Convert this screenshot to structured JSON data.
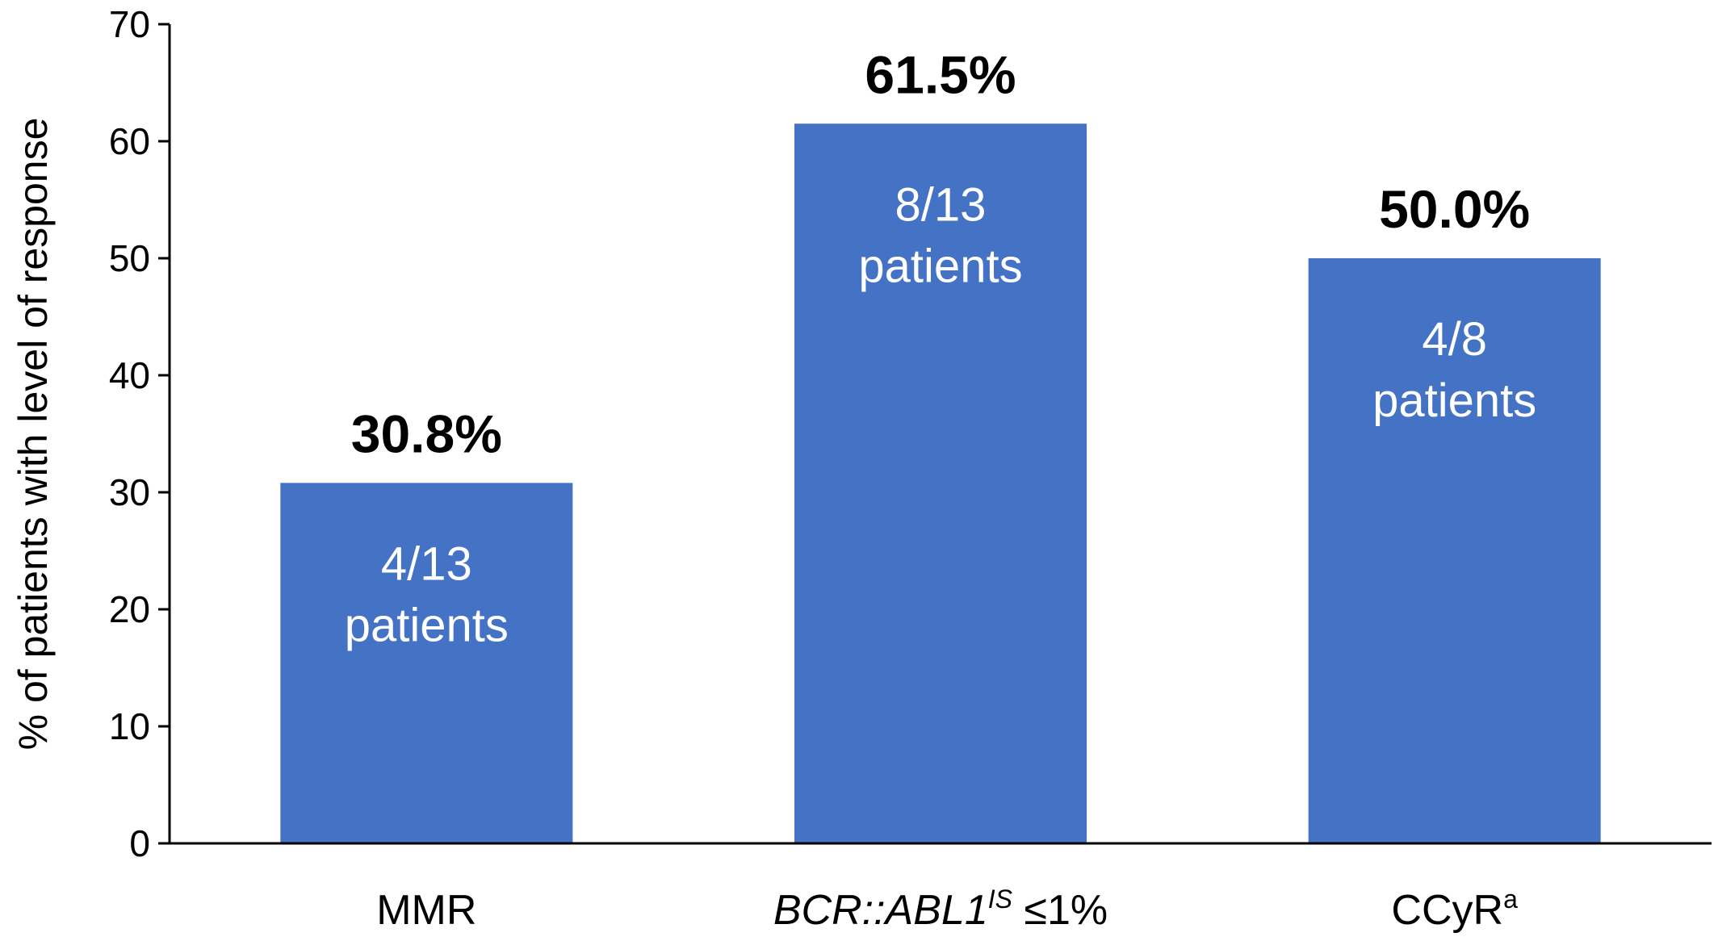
{
  "chart_data": {
    "type": "bar",
    "categories": [
      {
        "main": "MMR",
        "main_italic": false,
        "sup": "",
        "suffix": ""
      },
      {
        "main": "BCR::ABL1",
        "main_italic": true,
        "sup": "IS",
        "suffix": " ≤1%"
      },
      {
        "main": "CCyR",
        "main_italic": false,
        "sup": "a",
        "suffix": ""
      }
    ],
    "values": [
      30.8,
      61.5,
      50.0
    ],
    "value_labels": [
      "30.8%",
      "61.5%",
      "50.0%"
    ],
    "bar_labels": [
      [
        "4/13",
        "patients"
      ],
      [
        "8/13",
        "patients"
      ],
      [
        "4/8",
        "patients"
      ]
    ],
    "title": "",
    "xlabel": "",
    "ylabel": "% of patients with level of response",
    "ylim": [
      0,
      70
    ],
    "yticks": [
      0,
      10,
      20,
      30,
      40,
      50,
      60,
      70
    ],
    "grid": false,
    "legend": "none",
    "colors": {
      "bar": "#4472C4",
      "bar_text": "#FFFFFF",
      "axis": "#000000"
    }
  }
}
